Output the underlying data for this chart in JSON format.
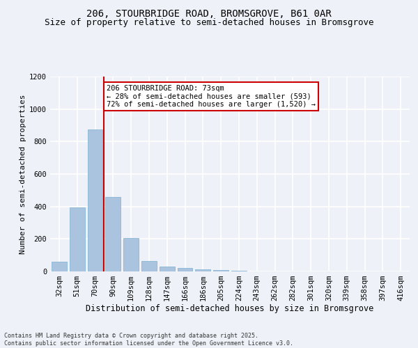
{
  "title1": "206, STOURBRIDGE ROAD, BROMSGROVE, B61 0AR",
  "title2": "Size of property relative to semi-detached houses in Bromsgrove",
  "xlabel": "Distribution of semi-detached houses by size in Bromsgrove",
  "ylabel": "Number of semi-detached properties",
  "categories": [
    "32sqm",
    "51sqm",
    "70sqm",
    "90sqm",
    "109sqm",
    "128sqm",
    "147sqm",
    "166sqm",
    "186sqm",
    "205sqm",
    "224sqm",
    "243sqm",
    "262sqm",
    "282sqm",
    "301sqm",
    "320sqm",
    "339sqm",
    "358sqm",
    "397sqm",
    "416sqm"
  ],
  "values": [
    60,
    395,
    875,
    460,
    205,
    65,
    32,
    22,
    13,
    8,
    3,
    2,
    1,
    1,
    0,
    0,
    0,
    0,
    0,
    0
  ],
  "bar_color": "#aac4df",
  "bar_edge_color": "#7aafd0",
  "annotation_text": "206 STOURBRIDGE ROAD: 73sqm\n← 28% of semi-detached houses are smaller (593)\n72% of semi-detached houses are larger (1,520) →",
  "annotation_box_color": "#ffffff",
  "annotation_box_edge": "#cc0000",
  "ylim": [
    0,
    1200
  ],
  "yticks": [
    0,
    200,
    400,
    600,
    800,
    1000,
    1200
  ],
  "footer_text": "Contains HM Land Registry data © Crown copyright and database right 2025.\nContains public sector information licensed under the Open Government Licence v3.0.",
  "bg_color": "#eef2f8",
  "plot_bg_color": "#eef2f8",
  "grid_color": "#ffffff",
  "title_fontsize": 10,
  "subtitle_fontsize": 9,
  "tick_fontsize": 7.5,
  "red_line_color": "#cc0000",
  "font_family": "DejaVu Sans Mono"
}
